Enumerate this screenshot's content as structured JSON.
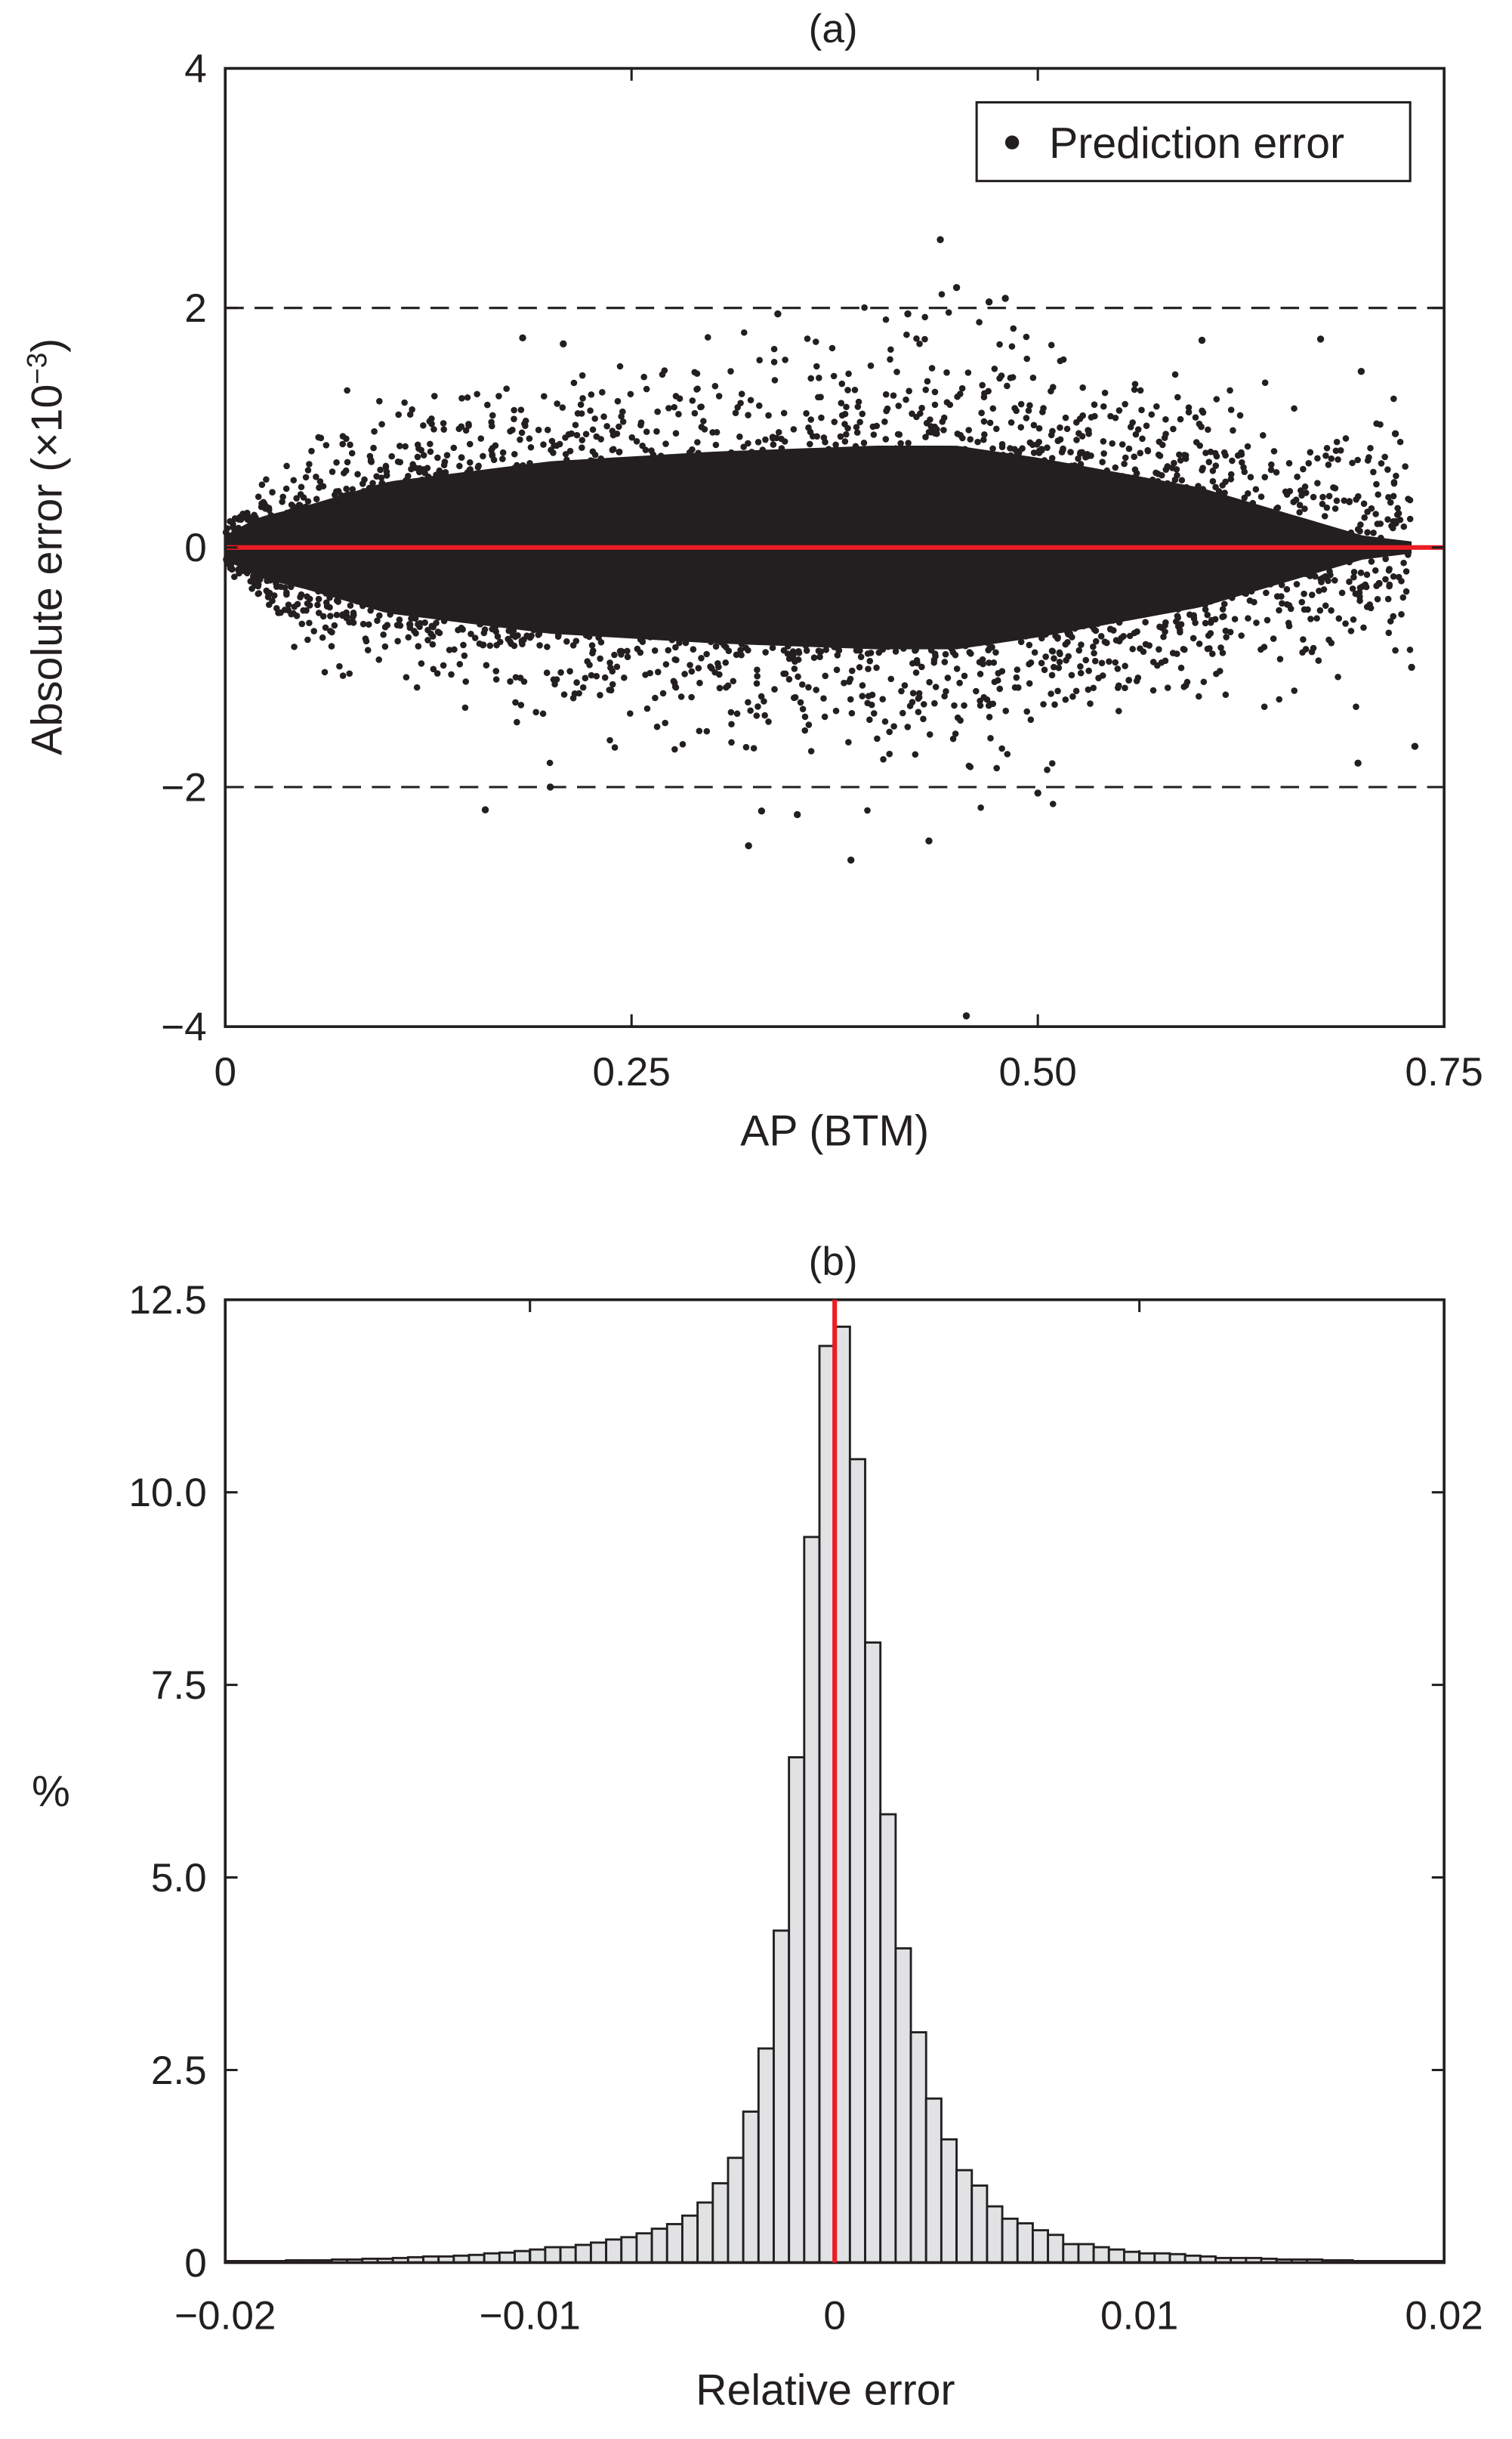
{
  "chart_data": [
    {
      "type": "scatter",
      "title": "(a)",
      "xlabel": "AP (BTM)",
      "ylabel_main": "Absolute error (×10",
      "ylabel_exp": "−3",
      "ylabel_close": ")",
      "xlim": [
        0,
        0.75
      ],
      "ylim": [
        -4,
        4
      ],
      "xticks": [
        0,
        0.25,
        0.5,
        0.75
      ],
      "xtick_labels": [
        "0",
        "0.25",
        "0.50",
        "0.75"
      ],
      "yticks": [
        4,
        2,
        0,
        -2,
        -4
      ],
      "ytick_labels": [
        "4",
        "2",
        "0",
        "−2",
        "−4"
      ],
      "reference_lines": {
        "dashed_y": [
          2,
          -2
        ],
        "red_y": 0
      },
      "legend": {
        "label": "Prediction error",
        "placement": "top-right"
      },
      "series_color": "#231f20",
      "reference_color": "#ed1c24",
      "cloud_envelope": {
        "x": [
          0,
          0.02,
          0.05,
          0.1,
          0.2,
          0.3,
          0.4,
          0.45,
          0.5,
          0.6,
          0.65,
          0.7,
          0.73
        ],
        "core_halfwidth": [
          0.1,
          0.25,
          0.35,
          0.55,
          0.72,
          0.8,
          0.85,
          0.85,
          0.75,
          0.5,
          0.3,
          0.1,
          0.05
        ],
        "spread_halfwidth": [
          0.2,
          0.45,
          0.7,
          1.0,
          1.25,
          1.4,
          1.55,
          1.6,
          1.45,
          1.2,
          1.1,
          1.0,
          0.9
        ]
      },
      "outliers": [
        [
          0.44,
          2.57
        ],
        [
          0.456,
          -3.91
        ],
        [
          0.385,
          -2.61
        ],
        [
          0.322,
          -2.49
        ],
        [
          0.433,
          -2.45
        ],
        [
          0.16,
          -2.19
        ],
        [
          0.183,
          1.75
        ],
        [
          0.674,
          1.74
        ],
        [
          0.699,
          1.47
        ],
        [
          0.45,
          2.17
        ],
        [
          0.48,
          2.08
        ],
        [
          0.732,
          -1.66
        ],
        [
          0.697,
          -1.8
        ],
        [
          0.208,
          1.7
        ],
        [
          0.601,
          1.73
        ],
        [
          0.352,
          -2.23
        ],
        [
          0.2,
          -2.0
        ],
        [
          0.34,
          1.95
        ],
        [
          0.47,
          2.05
        ],
        [
          0.42,
          1.95
        ],
        [
          0.33,
          -2.2
        ],
        [
          0.5,
          -2.05
        ],
        [
          0.72,
          0.95
        ],
        [
          0.73,
          -1.0
        ],
        [
          0.71,
          -0.3
        ]
      ]
    },
    {
      "type": "bar",
      "subtype": "histogram",
      "title": "(b)",
      "xlabel": "Relative error",
      "ylabel": "%",
      "xlim": [
        -0.02,
        0.02
      ],
      "ylim": [
        0,
        12.5
      ],
      "bin_width": 0.0005,
      "bin_start": -0.02,
      "xticks": [
        -0.02,
        -0.01,
        0,
        0.01,
        0.02
      ],
      "xtick_labels": [
        "−0.02",
        "−0.01",
        "0",
        "0.01",
        "0.02"
      ],
      "yticks": [
        0,
        2.5,
        5,
        7.5,
        10,
        12.5
      ],
      "ytick_labels": [
        "0",
        "2.5",
        "5.0",
        "7.5",
        "10.0",
        "12.5"
      ],
      "values": [
        0.02,
        0.02,
        0.02,
        0.02,
        0.03,
        0.03,
        0.03,
        0.04,
        0.04,
        0.05,
        0.05,
        0.06,
        0.07,
        0.08,
        0.08,
        0.09,
        0.1,
        0.12,
        0.13,
        0.15,
        0.17,
        0.2,
        0.2,
        0.23,
        0.26,
        0.3,
        0.33,
        0.38,
        0.44,
        0.5,
        0.61,
        0.78,
        1.03,
        1.36,
        1.96,
        2.78,
        4.31,
        6.56,
        9.42,
        11.9,
        12.15,
        10.43,
        8.05,
        5.82,
        4.08,
        2.99,
        2.13,
        1.6,
        1.2,
        1.0,
        0.73,
        0.57,
        0.51,
        0.42,
        0.36,
        0.24,
        0.24,
        0.2,
        0.17,
        0.14,
        0.12,
        0.12,
        0.11,
        0.09,
        0.08,
        0.06,
        0.06,
        0.06,
        0.05,
        0.04,
        0.04,
        0.04,
        0.03,
        0.03,
        0.02,
        0.02,
        0.02,
        0.02,
        0.02,
        0.02
      ],
      "bar_fill": "#e1e2e3",
      "bar_edge": "#231f20",
      "reference_line_x": 0,
      "reference_color": "#ed1c24"
    }
  ]
}
